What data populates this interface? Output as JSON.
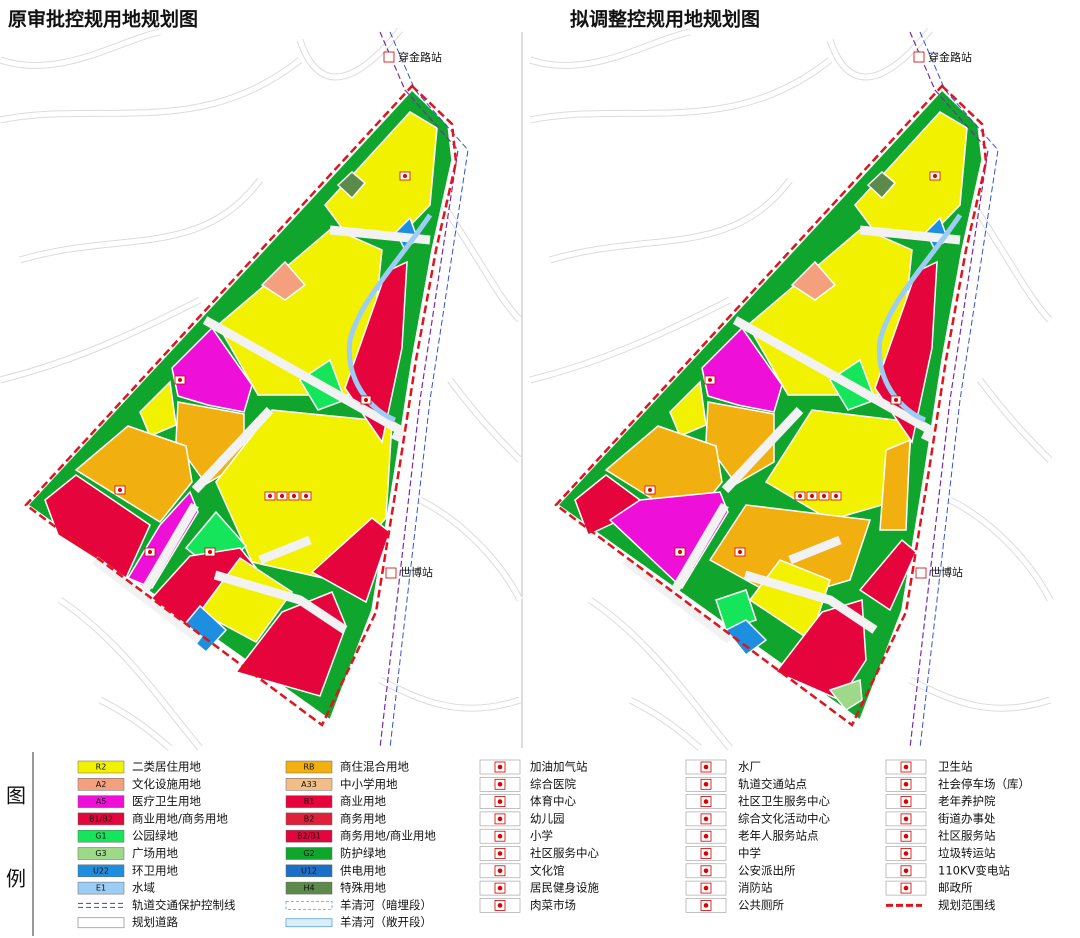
{
  "maps": [
    {
      "title": "原审批控规用地规划图",
      "station_top": "穿金路站",
      "station_bottom": "世博站"
    },
    {
      "title": "拟调整控规用地规划图",
      "station_top": "穿金路站",
      "station_bottom": "世博站"
    }
  ],
  "legend": {
    "label_top": "图",
    "label_bottom": "例",
    "columns": [
      [
        {
          "kind": "swatch",
          "code": "R2",
          "name": "二类居住用地",
          "color": "#f2f200"
        },
        {
          "kind": "swatch",
          "code": "A2",
          "name": "文化设施用地",
          "color": "#f4a07e"
        },
        {
          "kind": "swatch",
          "code": "A5",
          "name": "医疗卫生用地",
          "color": "#ee10d8"
        },
        {
          "kind": "swatch",
          "code": "B1/B2",
          "name": "商业用地/商务用地",
          "color": "#e5053c"
        },
        {
          "kind": "swatch",
          "code": "G1",
          "name": "公园绿地",
          "color": "#14e55a"
        },
        {
          "kind": "swatch",
          "code": "G3",
          "name": "广场用地",
          "color": "#9ed98a"
        },
        {
          "kind": "swatch",
          "code": "U22",
          "name": "环卫用地",
          "color": "#1e8fe0"
        },
        {
          "kind": "swatch",
          "code": "E1",
          "name": "水域",
          "color": "#9ccdf5"
        },
        {
          "kind": "rail-line",
          "name": "轨道交通保护控制线"
        },
        {
          "kind": "road",
          "name": "规划道路"
        }
      ],
      [
        {
          "kind": "swatch",
          "code": "RB",
          "name": "商住混合用地",
          "color": "#f2b010"
        },
        {
          "kind": "swatch",
          "code": "A33",
          "name": "中小学用地",
          "color": "#f3bd88"
        },
        {
          "kind": "swatch",
          "code": "B1",
          "name": "商业用地",
          "color": "#e5053c"
        },
        {
          "kind": "swatch",
          "code": "B2",
          "name": "商务用地",
          "color": "#e0203a"
        },
        {
          "kind": "swatch",
          "code": "B2/B1",
          "name": "商务用地/商业用地",
          "color": "#e5053c"
        },
        {
          "kind": "swatch",
          "code": "G2",
          "name": "防护绿地",
          "color": "#10a52c"
        },
        {
          "kind": "swatch",
          "code": "U12",
          "name": "供电用地",
          "color": "#1a6fc8"
        },
        {
          "kind": "swatch",
          "code": "H4",
          "name": "特殊用地",
          "color": "#5b8a4a"
        },
        {
          "kind": "river-hidden",
          "name": "羊清河（暗埋段）"
        },
        {
          "kind": "river-open",
          "name": "羊清河（敞开段）"
        }
      ],
      [
        {
          "kind": "icon",
          "name": "加油加气站"
        },
        {
          "kind": "icon",
          "name": "综合医院"
        },
        {
          "kind": "icon",
          "name": "体育中心"
        },
        {
          "kind": "icon",
          "name": "幼儿园"
        },
        {
          "kind": "icon",
          "name": "小学"
        },
        {
          "kind": "icon",
          "name": "社区服务中心"
        },
        {
          "kind": "icon",
          "name": "文化馆"
        },
        {
          "kind": "icon",
          "name": "居民健身设施"
        },
        {
          "kind": "icon",
          "name": "肉菜市场"
        }
      ],
      [
        {
          "kind": "icon",
          "name": "水厂"
        },
        {
          "kind": "icon",
          "name": "轨道交通站点"
        },
        {
          "kind": "icon",
          "name": "社区卫生服务中心"
        },
        {
          "kind": "icon",
          "name": "综合文化活动中心"
        },
        {
          "kind": "icon",
          "name": "老年人服务站点"
        },
        {
          "kind": "icon",
          "name": "中学"
        },
        {
          "kind": "icon",
          "name": "公安派出所"
        },
        {
          "kind": "icon",
          "name": "消防站"
        },
        {
          "kind": "icon",
          "name": "公共厕所"
        }
      ],
      [
        {
          "kind": "icon",
          "name": "卫生站"
        },
        {
          "kind": "icon",
          "name": "社会停车场（库）"
        },
        {
          "kind": "icon",
          "name": "老年养护院"
        },
        {
          "kind": "icon",
          "name": "街道办事处"
        },
        {
          "kind": "icon",
          "name": "社区服务站"
        },
        {
          "kind": "icon",
          "name": "垃圾转运站"
        },
        {
          "kind": "icon",
          "name": "110KV变电站"
        },
        {
          "kind": "icon",
          "name": "邮政所"
        },
        {
          "kind": "boundary",
          "name": "规划范围线"
        }
      ]
    ]
  }
}
